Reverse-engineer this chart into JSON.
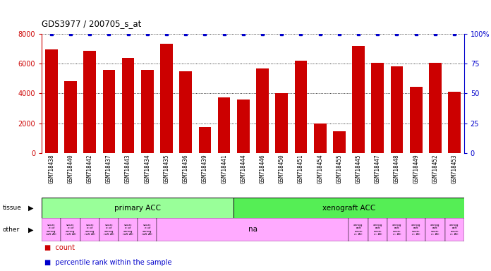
{
  "title": "GDS3977 / 200705_s_at",
  "samples": [
    "GSM718438",
    "GSM718440",
    "GSM718442",
    "GSM718437",
    "GSM718443",
    "GSM718434",
    "GSM718435",
    "GSM718436",
    "GSM718439",
    "GSM718441",
    "GSM718444",
    "GSM718446",
    "GSM718450",
    "GSM718451",
    "GSM718454",
    "GSM718455",
    "GSM718445",
    "GSM718447",
    "GSM718448",
    "GSM718449",
    "GSM718452",
    "GSM718453"
  ],
  "counts": [
    6950,
    4850,
    6850,
    5600,
    6400,
    5600,
    7350,
    5500,
    1750,
    3750,
    3600,
    5700,
    4000,
    6200,
    2000,
    1450,
    7200,
    6050,
    5800,
    4450,
    6050,
    4100
  ],
  "percentile": [
    100,
    100,
    100,
    100,
    100,
    100,
    100,
    100,
    100,
    100,
    100,
    100,
    100,
    100,
    100,
    100,
    100,
    100,
    100,
    100,
    100,
    100
  ],
  "bar_color": "#cc0000",
  "percentile_color": "#0000cc",
  "ylim_left": [
    0,
    8000
  ],
  "ylim_right": [
    0,
    100
  ],
  "yticks_left": [
    0,
    2000,
    4000,
    6000,
    8000
  ],
  "yticks_right": [
    0,
    25,
    50,
    75,
    100
  ],
  "ytick_labels_right": [
    "0",
    "25",
    "50",
    "75",
    "100%"
  ],
  "n_primary": 10,
  "n_xenograft": 12,
  "tissue_primary_label": "primary ACC",
  "tissue_xenograft_label": "xenograft ACC",
  "tissue_primary_color": "#99ff99",
  "tissue_xenograft_color": "#55ee55",
  "other_primary_color": "#ffaaff",
  "other_na_label": "na",
  "legend_count_color": "#cc0000",
  "legend_percentile_color": "#0000cc",
  "legend_count_label": "count",
  "legend_percentile_label": "percentile rank within the sample",
  "background_color": "#ffffff",
  "tick_label_color_left": "#cc0000",
  "tick_label_color_right": "#0000cc",
  "xtick_bg_color": "#dddddd"
}
